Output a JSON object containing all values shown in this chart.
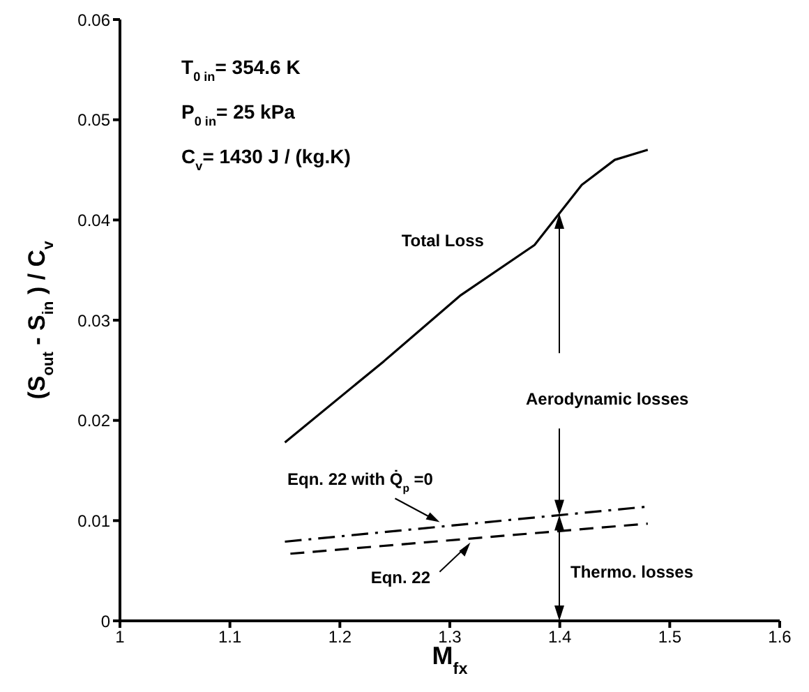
{
  "chart_data": {
    "type": "line",
    "xlabel": "M$_{fx}$",
    "ylabel": "(S$_{out}$ - S$_{in}$ ) / C$_{v}$",
    "xlim": [
      1,
      1.6
    ],
    "xticks": [
      1,
      1.1,
      1.2,
      1.3,
      1.4,
      1.5,
      1.6
    ],
    "ylim": [
      0,
      0.06
    ],
    "yticks": [
      0,
      0.01,
      0.02,
      0.03,
      0.04,
      0.05,
      0.06
    ],
    "grid": false,
    "legend": false,
    "marker": "none",
    "series": [
      {
        "name": "Total Loss",
        "color": "#000000",
        "line_style": "solid",
        "x": [
          1.15,
          1.24,
          1.31,
          1.377,
          1.42,
          1.45,
          1.48
        ],
        "values": [
          0.0178,
          0.0259,
          0.0325,
          0.0375,
          0.0435,
          0.046,
          0.047
        ]
      },
      {
        "name": "Eqn. 22 with Q̇$_{p}$ =0",
        "color": "#000000",
        "line_style": "dashdot",
        "x": [
          1.15,
          1.48
        ],
        "values": [
          0.0079,
          0.0114
        ]
      },
      {
        "name": "Eqn. 22",
        "color": "#000000",
        "line_style": "dashed",
        "x": [
          1.155,
          1.48
        ],
        "values": [
          0.0067,
          0.0097
        ]
      }
    ],
    "annotations": [
      "T$_{0 in}$= 354.6 K",
      "P$_{0 in}$= 25 kPa",
      "C$_{v}$= 1430  J / (kg.K)",
      "Aerodynamic losses",
      "Thermo. losses"
    ]
  }
}
